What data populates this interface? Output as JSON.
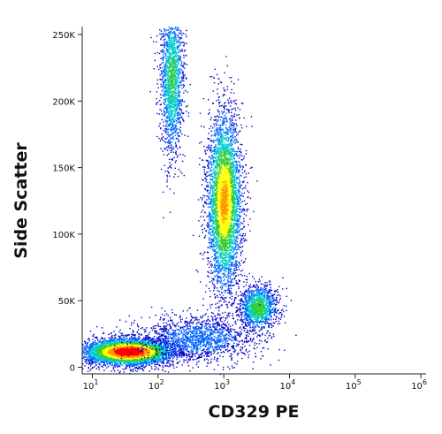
{
  "chart_data": {
    "type": "scatter",
    "xlabel": "CD329 PE",
    "ylabel": "Side Scatter",
    "x_scale": "log",
    "xlim": [
      7,
      1200000
    ],
    "ylim": [
      -5000,
      256000
    ],
    "x_ticks": [
      {
        "value": 10,
        "base": "10",
        "exp": "1"
      },
      {
        "value": 100,
        "base": "10",
        "exp": "2"
      },
      {
        "value": 1000,
        "base": "10",
        "exp": "3"
      },
      {
        "value": 10000,
        "base": "10",
        "exp": "4"
      },
      {
        "value": 100000,
        "base": "10",
        "exp": "5"
      },
      {
        "value": 1000000,
        "base": "10",
        "exp": "6"
      }
    ],
    "y_ticks": [
      {
        "value": 0,
        "label": "0"
      },
      {
        "value": 50000,
        "label": "50K"
      },
      {
        "value": 100000,
        "label": "100K"
      },
      {
        "value": 150000,
        "label": "150K"
      },
      {
        "value": 200000,
        "label": "200K"
      },
      {
        "value": 250000,
        "label": "250K"
      }
    ],
    "grid": false,
    "legend": "none",
    "colormap": [
      "#0000cc",
      "#0066ff",
      "#00cccc",
      "#33cc33",
      "#ffff00",
      "#ff9900",
      "#ff0000"
    ],
    "populations": [
      {
        "x_center": 35,
        "y_center": 12000,
        "x_spread_decades": 0.35,
        "y_spread": 5000,
        "count": 5000,
        "peak_density": 1.0
      },
      {
        "x_center": 1000,
        "y_center": 125000,
        "x_spread_decades": 0.13,
        "y_spread": 33000,
        "count": 4300,
        "peak_density": 0.75
      },
      {
        "x_center": 160,
        "y_center": 218000,
        "x_spread_decades": 0.09,
        "y_spread": 30000,
        "count": 1800,
        "peak_density": 0.45
      },
      {
        "x_center": 3300,
        "y_center": 45000,
        "x_spread_decades": 0.14,
        "y_spread": 8500,
        "count": 1300,
        "peak_density": 0.5
      },
      {
        "x_center": 400,
        "y_center": 22000,
        "x_spread_decades": 0.45,
        "y_spread": 9000,
        "count": 1500,
        "peak_density": 0.2
      }
    ]
  }
}
